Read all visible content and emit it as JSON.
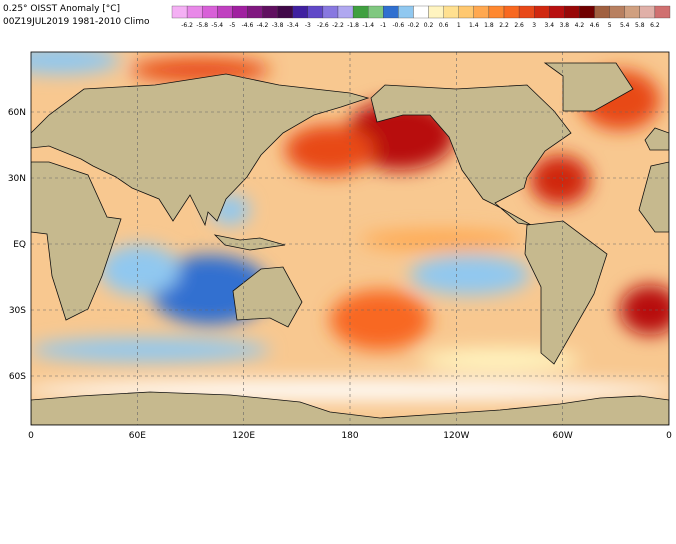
{
  "header": {
    "title": "0.25° OISST Anomaly [°C]",
    "subtitle": "00Z19JUL2019 1981-2010 Climo"
  },
  "colorbar": {
    "labels": [
      -6.2,
      -5.8,
      -5.4,
      -5,
      -4.6,
      -4.2,
      -3.8,
      -3.4,
      -3,
      -2.6,
      -2.2,
      -1.8,
      -1.4,
      -1,
      -0.6,
      -0.2,
      0.2,
      0.6,
      1,
      1.4,
      1.8,
      2.2,
      2.6,
      3,
      3.4,
      3.8,
      4.2,
      4.6,
      5,
      5.4,
      5.8,
      6.2
    ],
    "colors": [
      "#f4b0f4",
      "#e888e8",
      "#d860d8",
      "#c040c0",
      "#a020a0",
      "#801880",
      "#601060",
      "#400848",
      "#4020a0",
      "#6048c8",
      "#8878e0",
      "#b0a8f0",
      "#40a040",
      "#80c880",
      "#3070d0",
      "#90c8f0",
      "#ffffff",
      "#fff4c0",
      "#ffe090",
      "#ffc870",
      "#ffa850",
      "#ff8830",
      "#f86820",
      "#e84818",
      "#d02810",
      "#b81010",
      "#980808",
      "#700000",
      "#a06040",
      "#b88060",
      "#d0a080",
      "#e0b0a8",
      "#d07070"
    ]
  },
  "map": {
    "lon_labels": [
      "0",
      "60E",
      "120E",
      "180",
      "120W",
      "60W",
      "0"
    ],
    "lat_labels": [
      "60N",
      "30N",
      "EQ",
      "30S",
      "60S"
    ]
  }
}
